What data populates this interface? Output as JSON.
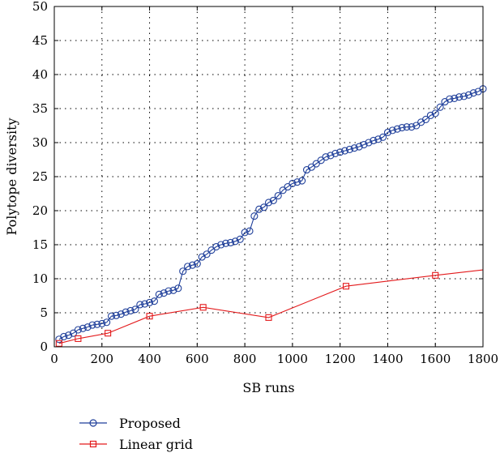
{
  "chart_data": {
    "type": "line",
    "title": "",
    "xlabel": "SB runs",
    "ylabel": "Polytope diversity",
    "xlim": [
      0,
      1800
    ],
    "ylim": [
      0,
      50
    ],
    "xticks": [
      0,
      200,
      400,
      600,
      800,
      1000,
      1200,
      1400,
      1600,
      1800
    ],
    "yticks": [
      0,
      5,
      10,
      15,
      20,
      25,
      30,
      35,
      40,
      45,
      50
    ],
    "grid": true,
    "legend_position": "bottom-left, below plot",
    "series": [
      {
        "name": "Proposed",
        "color": "#1f3f9a",
        "marker": "circle",
        "x": [
          20,
          40,
          60,
          80,
          100,
          120,
          140,
          160,
          180,
          200,
          220,
          240,
          260,
          280,
          300,
          320,
          340,
          360,
          380,
          400,
          420,
          440,
          460,
          480,
          500,
          520,
          540,
          560,
          580,
          600,
          620,
          640,
          660,
          680,
          700,
          720,
          740,
          760,
          780,
          800,
          820,
          840,
          860,
          880,
          900,
          920,
          940,
          960,
          980,
          1000,
          1020,
          1040,
          1060,
          1080,
          1100,
          1120,
          1140,
          1160,
          1180,
          1200,
          1220,
          1240,
          1260,
          1280,
          1300,
          1320,
          1340,
          1360,
          1380,
          1400,
          1420,
          1440,
          1460,
          1480,
          1500,
          1520,
          1540,
          1560,
          1580,
          1600,
          1620,
          1640,
          1660,
          1680,
          1700,
          1720,
          1740,
          1760,
          1780,
          1800
        ],
        "values": [
          1.1,
          1.5,
          1.7,
          2.0,
          2.5,
          2.7,
          2.9,
          3.2,
          3.3,
          3.4,
          3.6,
          4.5,
          4.6,
          4.8,
          5.1,
          5.3,
          5.5,
          6.2,
          6.3,
          6.5,
          6.7,
          7.7,
          7.9,
          8.2,
          8.3,
          8.6,
          11.1,
          11.8,
          12.0,
          12.2,
          13.2,
          13.6,
          14.2,
          14.7,
          15.0,
          15.2,
          15.3,
          15.5,
          15.8,
          16.8,
          17.0,
          19.2,
          20.2,
          20.5,
          21.2,
          21.5,
          22.2,
          23.0,
          23.5,
          24.0,
          24.2,
          24.4,
          26.0,
          26.4,
          26.9,
          27.4,
          27.9,
          28.1,
          28.4,
          28.6,
          28.8,
          29.0,
          29.2,
          29.4,
          29.7,
          30.0,
          30.3,
          30.5,
          30.8,
          31.5,
          31.8,
          32.0,
          32.2,
          32.3,
          32.3,
          32.5,
          33.0,
          33.4,
          34.0,
          34.3,
          35.2,
          36.0,
          36.4,
          36.5,
          36.7,
          36.8,
          37.0,
          37.3,
          37.5,
          37.9
        ]
      },
      {
        "name": "Linear grid",
        "color": "#e31a1c",
        "marker": "square",
        "x": [
          20,
          100,
          225,
          400,
          625,
          900,
          1225,
          1600,
          1800
        ],
        "values": [
          0.5,
          1.2,
          2.0,
          4.5,
          5.8,
          4.3,
          8.9,
          10.5,
          11.3
        ],
        "marker_indices": [
          0,
          1,
          2,
          3,
          4,
          5,
          6,
          7
        ]
      }
    ]
  }
}
